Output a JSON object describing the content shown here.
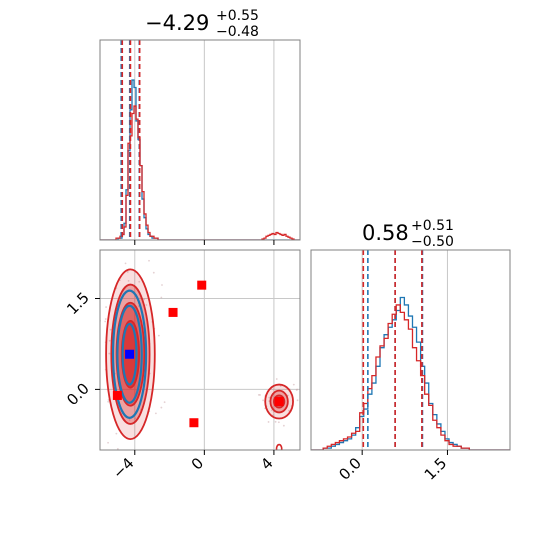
{
  "colors": {
    "series_a": "#1f77b4",
    "series_b": "#d62728",
    "grid": "#c8c8c8",
    "frame": "#808080",
    "marker_red": "#ff0000",
    "marker_blue": "#0000ff"
  },
  "chart_data": [
    {
      "type": "histogram",
      "panel": "top-left",
      "title": {
        "value": "−4.29",
        "plus": "+0.55",
        "minus": "−0.48"
      },
      "xlim": [
        -6.0,
        5.5
      ],
      "ylim": [
        0,
        1.0
      ],
      "grid": true,
      "quantile_lines": [
        {
          "series": "series_a",
          "values": [
            -4.78,
            -4.29,
            -3.74
          ]
        },
        {
          "series": "series_b",
          "values": [
            -4.72,
            -4.25,
            -3.72
          ]
        }
      ],
      "series": [
        {
          "color_key": "series_a",
          "bin_start": -6.0,
          "bin_width": 0.115,
          "counts": [
            0,
            0,
            0,
            0,
            0,
            0,
            0,
            0,
            0,
            0.01,
            0.01,
            0.03,
            0.09,
            0.27,
            0.48,
            0.7,
            0.86,
            0.82,
            0.64,
            0.54,
            0.4,
            0.22,
            0.12,
            0.06,
            0.03,
            0.02,
            0.01,
            0.01,
            0.01,
            0,
            0,
            0,
            0,
            0,
            0,
            0,
            0,
            0,
            0,
            0,
            0,
            0,
            0,
            0,
            0,
            0,
            0,
            0,
            0,
            0,
            0,
            0,
            0,
            0,
            0,
            0,
            0,
            0,
            0,
            0,
            0,
            0,
            0,
            0,
            0,
            0,
            0,
            0,
            0,
            0,
            0,
            0,
            0,
            0,
            0,
            0,
            0,
            0,
            0,
            0,
            0,
            0,
            0,
            0,
            0,
            0,
            0,
            0,
            0,
            0,
            0,
            0,
            0,
            0,
            0,
            0,
            0,
            0,
            0,
            0
          ]
        },
        {
          "color_key": "series_b",
          "bin_start": -6.0,
          "bin_width": 0.115,
          "counts": [
            0,
            0,
            0,
            0,
            0,
            0,
            0,
            0,
            0.01,
            0.01,
            0.02,
            0.03,
            0.07,
            0.24,
            0.52,
            0.56,
            0.68,
            0.72,
            0.65,
            0.55,
            0.4,
            0.26,
            0.14,
            0.08,
            0.04,
            0.02,
            0.02,
            0.01,
            0.01,
            0,
            0,
            0,
            0,
            0,
            0,
            0,
            0,
            0,
            0,
            0,
            0,
            0,
            0,
            0,
            0,
            0,
            0,
            0,
            0,
            0,
            0,
            0,
            0,
            0,
            0,
            0,
            0,
            0,
            0,
            0,
            0,
            0,
            0,
            0,
            0,
            0,
            0,
            0,
            0,
            0,
            0,
            0,
            0,
            0,
            0,
            0,
            0,
            0,
            0,
            0,
            0,
            0.005,
            0.01,
            0.02,
            0.025,
            0.03,
            0.035,
            0.03,
            0.04,
            0.035,
            0.03,
            0.025,
            0.03,
            0.02,
            0.015,
            0.01,
            0.005,
            0,
            0,
            0
          ]
        }
      ]
    },
    {
      "type": "histogram",
      "panel": "bottom-right",
      "title": {
        "value": "0.58",
        "plus": "+0.51",
        "minus": "−0.50"
      },
      "xlim": [
        -0.9,
        2.6
      ],
      "ylim": [
        0,
        1.0
      ],
      "grid": true,
      "xticks": [
        "0.0",
        "1.5"
      ],
      "xtick_values": [
        0.0,
        1.5
      ],
      "quantile_lines": [
        {
          "series": "series_a",
          "values": [
            0.1,
            0.58,
            1.06
          ]
        },
        {
          "series": "series_b",
          "values": [
            0.02,
            0.58,
            1.05
          ]
        }
      ],
      "series": [
        {
          "color_key": "series_a",
          "bin_start": -0.9,
          "bin_width": 0.0714,
          "counts": [
            0,
            0,
            0,
            0.01,
            0.01,
            0.02,
            0.03,
            0.04,
            0.05,
            0.06,
            0.08,
            0.12,
            0.18,
            0.22,
            0.3,
            0.36,
            0.45,
            0.55,
            0.62,
            0.66,
            0.7,
            0.75,
            0.82,
            0.78,
            0.72,
            0.66,
            0.58,
            0.45,
            0.36,
            0.25,
            0.19,
            0.14,
            0.1,
            0.06,
            0.04,
            0.03,
            0.02,
            0.01,
            0.01,
            0,
            0,
            0,
            0,
            0,
            0,
            0,
            0,
            0,
            0
          ]
        },
        {
          "color_key": "series_b",
          "bin_start": -0.9,
          "bin_width": 0.0714,
          "counts": [
            0,
            0,
            0,
            0.01,
            0.02,
            0.03,
            0.04,
            0.05,
            0.06,
            0.07,
            0.09,
            0.1,
            0.2,
            0.25,
            0.33,
            0.4,
            0.5,
            0.56,
            0.6,
            0.68,
            0.73,
            0.78,
            0.74,
            0.7,
            0.65,
            0.55,
            0.48,
            0.4,
            0.3,
            0.24,
            0.16,
            0.12,
            0.08,
            0.05,
            0.03,
            0.02,
            0.02,
            0.01,
            0.01,
            0,
            0,
            0,
            0,
            0,
            0,
            0,
            0,
            0,
            0
          ]
        }
      ]
    },
    {
      "type": "contour",
      "panel": "bottom-left",
      "xlim": [
        -6.0,
        5.5
      ],
      "ylim": [
        -1.0,
        2.3
      ],
      "grid": true,
      "xticks": [
        "−4",
        "0",
        "4"
      ],
      "xtick_values": [
        -4,
        0,
        4
      ],
      "yticks": [
        "0.0",
        "1.5"
      ],
      "ytick_values": [
        0.0,
        1.5
      ],
      "contour_groups": [
        {
          "color_key": "series_b",
          "center": [
            -4.25,
            0.58
          ],
          "rx_levels": [
            0.5,
            0.8,
            1.1,
            1.4
          ],
          "ry_levels": [
            0.55,
            0.85,
            1.15,
            1.4
          ]
        },
        {
          "color_key": "series_a",
          "center": [
            -4.3,
            0.58
          ],
          "rx_levels": [
            0.4,
            0.7,
            0.95
          ],
          "ry_levels": [
            0.5,
            0.8,
            1.05
          ]
        },
        {
          "color_key": "series_b",
          "center": [
            4.3,
            -0.2
          ],
          "rx_levels": [
            0.3,
            0.5,
            0.8
          ],
          "ry_levels": [
            0.1,
            0.18,
            0.28
          ]
        }
      ],
      "small_contour": {
        "color_key": "series_b",
        "center": [
          4.3,
          -0.98
        ],
        "rx": 0.15,
        "ry": 0.07
      },
      "red_markers": [
        {
          "x": -0.15,
          "y": 1.72
        },
        {
          "x": -1.8,
          "y": 1.27
        },
        {
          "x": -0.6,
          "y": -0.55
        },
        {
          "x": -5.0,
          "y": -0.1
        },
        {
          "x": 4.3,
          "y": -0.2
        }
      ],
      "blue_markers": [
        {
          "x": -4.3,
          "y": 0.58
        }
      ]
    }
  ]
}
